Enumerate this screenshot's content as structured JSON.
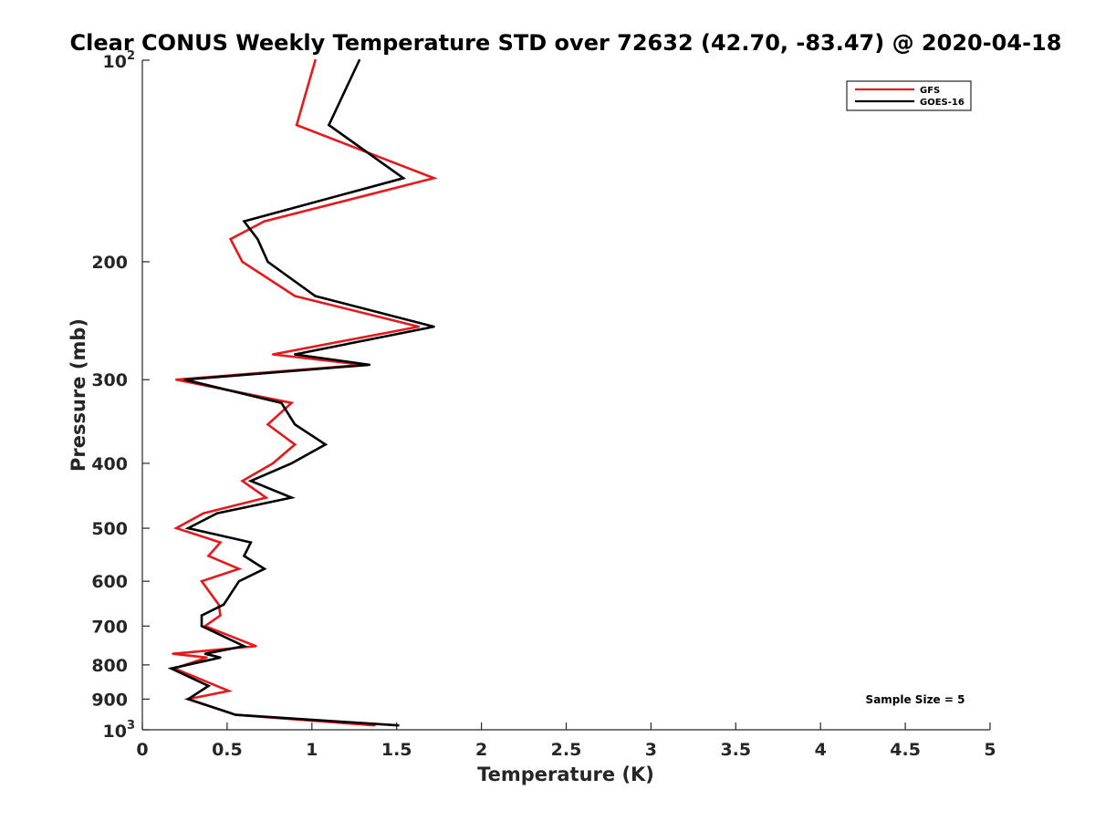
{
  "chart_data": {
    "type": "line",
    "title": "Clear CONUS Weekly Temperature STD over 72632 (42.70, -83.47) @ 2020-04-18",
    "xlabel": "Temperature (K)",
    "ylabel": "Pressure (mb)",
    "xlim": [
      0,
      5
    ],
    "ylim": [
      1000,
      100
    ],
    "y_scale": "log",
    "y_reversed": true,
    "grid": false,
    "legend_position": "top-right",
    "x_ticks": [
      {
        "value": 0,
        "label": "0"
      },
      {
        "value": 0.5,
        "label": "0.5"
      },
      {
        "value": 1,
        "label": "1"
      },
      {
        "value": 1.5,
        "label": "1.5"
      },
      {
        "value": 2,
        "label": "2"
      },
      {
        "value": 2.5,
        "label": "2.5"
      },
      {
        "value": 3,
        "label": "3"
      },
      {
        "value": 3.5,
        "label": "3.5"
      },
      {
        "value": 4,
        "label": "4"
      },
      {
        "value": 4.5,
        "label": "4.5"
      },
      {
        "value": 5,
        "label": "5"
      }
    ],
    "y_ticks": [
      {
        "value": 100,
        "base": "10",
        "exp": "2"
      },
      {
        "value": 200,
        "label": "200"
      },
      {
        "value": 300,
        "label": "300"
      },
      {
        "value": 400,
        "label": "400"
      },
      {
        "value": 500,
        "label": "500"
      },
      {
        "value": 600,
        "label": "600"
      },
      {
        "value": 700,
        "label": "700"
      },
      {
        "value": 800,
        "label": "800"
      },
      {
        "value": 900,
        "label": "900"
      },
      {
        "value": 1000,
        "base": "10",
        "exp": "3"
      }
    ],
    "series": [
      {
        "name": "GFS",
        "color": "#e41a1c",
        "points": [
          {
            "x": 1.02,
            "p": 100
          },
          {
            "x": 0.91,
            "p": 125
          },
          {
            "x": 1.72,
            "p": 150
          },
          {
            "x": 0.72,
            "p": 174
          },
          {
            "x": 0.52,
            "p": 185
          },
          {
            "x": 0.59,
            "p": 200
          },
          {
            "x": 0.9,
            "p": 225
          },
          {
            "x": 1.63,
            "p": 250
          },
          {
            "x": 0.77,
            "p": 275
          },
          {
            "x": 1.3,
            "p": 285
          },
          {
            "x": 0.2,
            "p": 300
          },
          {
            "x": 0.88,
            "p": 325
          },
          {
            "x": 0.74,
            "p": 350
          },
          {
            "x": 0.9,
            "p": 375
          },
          {
            "x": 0.77,
            "p": 400
          },
          {
            "x": 0.59,
            "p": 425
          },
          {
            "x": 0.73,
            "p": 450
          },
          {
            "x": 0.36,
            "p": 475
          },
          {
            "x": 0.2,
            "p": 500
          },
          {
            "x": 0.46,
            "p": 525
          },
          {
            "x": 0.39,
            "p": 550
          },
          {
            "x": 0.57,
            "p": 575
          },
          {
            "x": 0.35,
            "p": 600
          },
          {
            "x": 0.45,
            "p": 650
          },
          {
            "x": 0.46,
            "p": 675
          },
          {
            "x": 0.37,
            "p": 700
          },
          {
            "x": 0.67,
            "p": 750
          },
          {
            "x": 0.18,
            "p": 770
          },
          {
            "x": 0.38,
            "p": 780
          },
          {
            "x": 0.19,
            "p": 810
          },
          {
            "x": 0.51,
            "p": 875
          },
          {
            "x": 0.27,
            "p": 900
          },
          {
            "x": 0.55,
            "p": 950
          },
          {
            "x": 1.37,
            "p": 985
          }
        ]
      },
      {
        "name": "GOES-16",
        "color": "#000000",
        "points": [
          {
            "x": 1.28,
            "p": 100
          },
          {
            "x": 1.1,
            "p": 125
          },
          {
            "x": 1.54,
            "p": 150
          },
          {
            "x": 0.6,
            "p": 174
          },
          {
            "x": 0.68,
            "p": 185
          },
          {
            "x": 0.74,
            "p": 200
          },
          {
            "x": 1.02,
            "p": 225
          },
          {
            "x": 1.72,
            "p": 250
          },
          {
            "x": 0.9,
            "p": 275
          },
          {
            "x": 1.34,
            "p": 285
          },
          {
            "x": 0.25,
            "p": 300
          },
          {
            "x": 0.82,
            "p": 325
          },
          {
            "x": 0.9,
            "p": 350
          },
          {
            "x": 1.08,
            "p": 375
          },
          {
            "x": 0.88,
            "p": 400
          },
          {
            "x": 0.64,
            "p": 425
          },
          {
            "x": 0.88,
            "p": 450
          },
          {
            "x": 0.44,
            "p": 475
          },
          {
            "x": 0.27,
            "p": 500
          },
          {
            "x": 0.64,
            "p": 525
          },
          {
            "x": 0.6,
            "p": 550
          },
          {
            "x": 0.72,
            "p": 575
          },
          {
            "x": 0.57,
            "p": 600
          },
          {
            "x": 0.48,
            "p": 650
          },
          {
            "x": 0.35,
            "p": 675
          },
          {
            "x": 0.35,
            "p": 700
          },
          {
            "x": 0.6,
            "p": 750
          },
          {
            "x": 0.37,
            "p": 770
          },
          {
            "x": 0.46,
            "p": 780
          },
          {
            "x": 0.17,
            "p": 810
          },
          {
            "x": 0.39,
            "p": 860
          },
          {
            "x": 0.27,
            "p": 900
          },
          {
            "x": 0.55,
            "p": 950
          },
          {
            "x": 1.51,
            "p": 985
          }
        ]
      }
    ],
    "annotation": "Sample Size = 5"
  }
}
